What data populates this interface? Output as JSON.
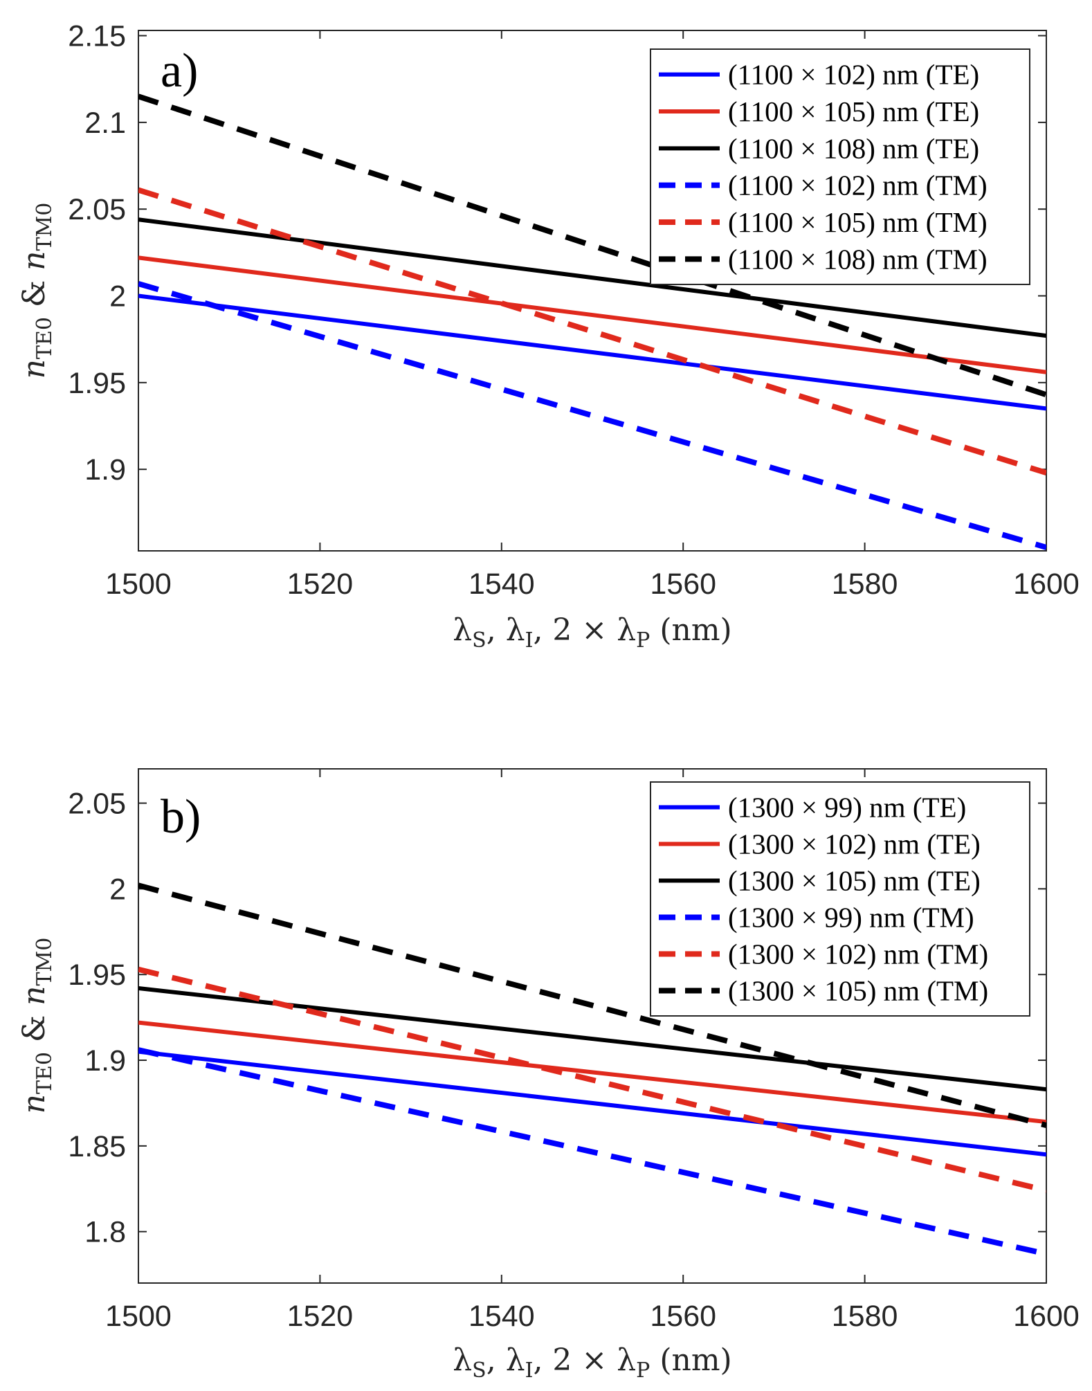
{
  "figure": {
    "charts_count": 2
  },
  "chart_data": [
    {
      "type": "line",
      "panel_label": "a)",
      "title": "",
      "xlabel": "λS, λI, 2 × λP (nm)",
      "xlabel_parts": {
        "lambda": "λ",
        "sub_s": "S",
        "sub_i": "I",
        "sub_p": "P",
        "sep": ", ",
        "times": "2 × ",
        "unit": " (nm)"
      },
      "ylabel": "nTE0 & nTM0",
      "ylabel_parts": {
        "n": "n",
        "sub_te": "TE0",
        "amp": " & ",
        "sub_tm": "TM0"
      },
      "xlim": [
        1500,
        1600
      ],
      "ylim": [
        1.853,
        2.153
      ],
      "xticks": [
        1500,
        1520,
        1540,
        1560,
        1580,
        1600
      ],
      "xtick_labels": [
        "1500",
        "1520",
        "1540",
        "1560",
        "1580",
        "1600"
      ],
      "yticks": [
        1.9,
        1.95,
        2,
        2.05,
        2.1,
        2.15
      ],
      "ytick_labels": [
        "1.9",
        "1.95",
        "2",
        "2.05",
        "2.1",
        "2.15"
      ],
      "grid": false,
      "legend_position": "top-right",
      "series": [
        {
          "name": "(1100 × 102) nm (TE)",
          "style": "solid",
          "color": "#0000ff",
          "x": [
            1500,
            1600
          ],
          "y": [
            2.0,
            1.935
          ]
        },
        {
          "name": "(1100 × 105) nm (TE)",
          "style": "solid",
          "color": "#e0291c",
          "x": [
            1500,
            1600
          ],
          "y": [
            2.022,
            1.956
          ]
        },
        {
          "name": "(1100 × 108) nm (TE)",
          "style": "solid",
          "color": "#000000",
          "x": [
            1500,
            1600
          ],
          "y": [
            2.044,
            1.977
          ]
        },
        {
          "name": "(1100 × 102) nm (TM)",
          "style": "dashed",
          "color": "#0000ff",
          "x": [
            1500,
            1600
          ],
          "y": [
            2.007,
            1.855
          ]
        },
        {
          "name": "(1100 × 105) nm (TM)",
          "style": "dashed",
          "color": "#e0291c",
          "x": [
            1500,
            1600
          ],
          "y": [
            2.061,
            1.898
          ]
        },
        {
          "name": "(1100 × 108) nm (TM)",
          "style": "dashed",
          "color": "#000000",
          "x": [
            1500,
            1600
          ],
          "y": [
            2.115,
            1.943
          ]
        }
      ]
    },
    {
      "type": "line",
      "panel_label": "b)",
      "title": "",
      "xlabel": "λS, λI, 2 × λP (nm)",
      "xlabel_parts": {
        "lambda": "λ",
        "sub_s": "S",
        "sub_i": "I",
        "sub_p": "P",
        "sep": ", ",
        "times": "2 × ",
        "unit": " (nm)"
      },
      "ylabel": "nTE0 & nTM0",
      "ylabel_parts": {
        "n": "n",
        "sub_te": "TE0",
        "amp": " & ",
        "sub_tm": "TM0"
      },
      "xlim": [
        1500,
        1600
      ],
      "ylim": [
        1.77,
        2.07
      ],
      "xticks": [
        1500,
        1520,
        1540,
        1560,
        1580,
        1600
      ],
      "xtick_labels": [
        "1500",
        "1520",
        "1540",
        "1560",
        "1580",
        "1600"
      ],
      "yticks": [
        1.8,
        1.85,
        1.9,
        1.95,
        2,
        2.05
      ],
      "ytick_labels": [
        "1.8",
        "1.85",
        "1.9",
        "1.95",
        "2",
        "2.05"
      ],
      "grid": false,
      "legend_position": "top-right",
      "series": [
        {
          "name": "(1300 × 99) nm (TE)",
          "style": "solid",
          "color": "#0000ff",
          "x": [
            1500,
            1600
          ],
          "y": [
            1.905,
            1.845
          ]
        },
        {
          "name": "(1300 × 102) nm (TE)",
          "style": "solid",
          "color": "#e0291c",
          "x": [
            1500,
            1600
          ],
          "y": [
            1.922,
            1.864
          ]
        },
        {
          "name": "(1300 × 105) nm (TE)",
          "style": "solid",
          "color": "#000000",
          "x": [
            1500,
            1600
          ],
          "y": [
            1.942,
            1.883
          ]
        },
        {
          "name": "(1300 × 99) nm (TM)",
          "style": "dashed",
          "color": "#0000ff",
          "x": [
            1500,
            1600
          ],
          "y": [
            1.906,
            1.787
          ]
        },
        {
          "name": "(1300 × 102) nm (TM)",
          "style": "dashed",
          "color": "#e0291c",
          "x": [
            1500,
            1600
          ],
          "y": [
            1.953,
            1.824
          ]
        },
        {
          "name": "(1300 × 105) nm (TM)",
          "style": "dashed",
          "color": "#000000",
          "x": [
            1500,
            1600
          ],
          "y": [
            2.002,
            1.862
          ]
        }
      ]
    }
  ]
}
